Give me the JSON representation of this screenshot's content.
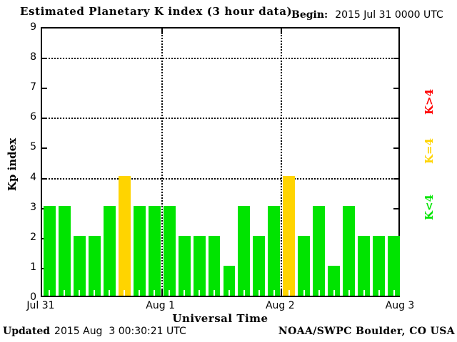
{
  "header": {
    "title": "Estimated Planetary K index (3 hour data)",
    "begin_label": "Begin:",
    "begin_value": "2015 Jul 31 0000 UTC"
  },
  "chart_data": {
    "type": "bar",
    "title": "Estimated Planetary K index (3 hour data)",
    "begin": "2015 Jul 31 0000 UTC",
    "xlabel": "Universal Time",
    "ylabel": "Kp index",
    "ylim": [
      0,
      9
    ],
    "yticks": [
      0,
      1,
      2,
      3,
      4,
      5,
      6,
      7,
      8,
      9
    ],
    "grid_y": [
      4,
      6,
      8
    ],
    "x_tick_labels": [
      "Jul 31",
      "Aug 1",
      "Aug 2",
      "Aug 3"
    ],
    "hours_per_bar": 3,
    "bars_per_day": 8,
    "values": [
      3,
      3,
      2,
      2,
      3,
      4,
      3,
      3,
      3,
      2,
      2,
      2,
      1,
      3,
      2,
      3,
      4,
      2,
      3,
      1,
      3,
      2,
      2,
      2
    ],
    "colors": {
      "below4": "#00e400",
      "equal4": "#ffd400",
      "above4": "#ff0000"
    }
  },
  "legend": {
    "position": "right",
    "items": [
      {
        "label": "K>4",
        "color": "#ff0000"
      },
      {
        "label": "K=4",
        "color": "#ffd400"
      },
      {
        "label": "K<4",
        "color": "#00e400"
      }
    ]
  },
  "footer": {
    "xlabel": "Universal Time",
    "updated_label": "Updated",
    "updated_value": "2015 Aug  3 00:30:21 UTC",
    "source": "NOAA/SWPC Boulder, CO USA"
  }
}
